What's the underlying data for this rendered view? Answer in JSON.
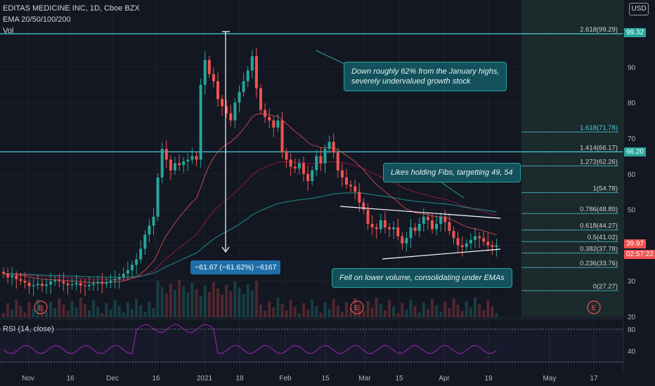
{
  "header": {
    "symbol": "EDITAS MEDICINE INC, 1D, Cboe BZX",
    "ema": "EMA 20/50/100/200",
    "vol": "Vol",
    "currency": "USD",
    "rsi": "RSI (14, close)"
  },
  "price_tags": {
    "top": "99.32",
    "mid": "66.20",
    "last": "39.97",
    "countdown": "02:57:22"
  },
  "annotations": {
    "a1_l1": "Down roughly 62% from the January highs,",
    "a1_l2": "severely undervalued growth stock",
    "a2": "Likes holding Fibs, targetting 49, 54",
    "a3": "Fell on lower volume, consolidating under EMAs",
    "measure": "−61.67 (−61.62%) −6167"
  },
  "colors": {
    "up": "#26a69a",
    "down": "#ef5350",
    "fib": "#4dd0e1",
    "bg": "#131722"
  },
  "chart_data": {
    "type": "candlestick",
    "x_ticks": [
      "Nov",
      "16",
      "Dec",
      "16",
      "2021",
      "18",
      "Feb",
      "15",
      "Mar",
      "15",
      "Apr",
      "19",
      "May",
      "17"
    ],
    "y_ticks": [
      "90",
      "80",
      "70",
      "60",
      "50",
      "40",
      "30",
      "20"
    ],
    "ylim": [
      20,
      108
    ],
    "fib_levels": [
      {
        "ratio": "2.618",
        "price": 99.29,
        "label": "2.618(99.29)"
      },
      {
        "ratio": "1.618",
        "price": 71.78,
        "label": "1.618(71.78)"
      },
      {
        "ratio": "1.414",
        "price": 66.17,
        "label": "1.414(66.17)"
      },
      {
        "ratio": "1.272",
        "price": 62.26,
        "label": "1.272(62.26)"
      },
      {
        "ratio": "1",
        "price": 54.78,
        "label": "1(54.78)"
      },
      {
        "ratio": "0.786",
        "price": 48.89,
        "label": "0.786(48.89)"
      },
      {
        "ratio": "0.618",
        "price": 44.27,
        "label": "0.618(44.27)"
      },
      {
        "ratio": "0.5",
        "price": 41.02,
        "label": "0.5(41.02)"
      },
      {
        "ratio": "0.382",
        "price": 37.78,
        "label": "0.382(37.78)"
      },
      {
        "ratio": "0.236",
        "price": 33.76,
        "label": "0.236(33.76)"
      },
      {
        "ratio": "0",
        "price": 27.27,
        "label": "0(27.27)"
      }
    ],
    "horizontal_lines": [
      99.32,
      66.2
    ],
    "close": [
      32,
      31,
      31.5,
      30.5,
      30,
      29.5,
      28.5,
      28.8,
      29.2,
      28.6,
      29,
      29.8,
      30.2,
      29.9,
      29.3,
      28.8,
      29,
      29.4,
      28.7,
      28.5,
      28.9,
      29.3,
      29.7,
      29.2,
      29.6,
      30.1,
      30.5,
      31,
      32,
      33,
      34.5,
      36,
      39,
      43,
      45.5,
      48,
      59,
      67,
      64,
      61,
      63,
      62.5,
      63.5,
      64,
      65,
      64,
      85,
      92,
      88,
      86,
      81,
      79,
      77,
      75,
      80,
      83,
      86,
      89,
      93,
      84,
      78,
      76,
      75,
      73,
      75,
      66,
      64,
      62,
      61.5,
      63,
      60,
      58,
      61,
      65,
      63,
      67,
      69,
      66,
      61,
      59,
      57,
      56.5,
      55,
      52,
      50,
      46,
      45,
      44.5,
      47,
      45,
      44.5,
      45,
      42.5,
      40.5,
      42,
      45,
      44,
      46,
      48,
      47,
      44.5,
      46,
      48,
      46.5,
      44,
      42,
      40,
      39.5,
      40.5,
      41.5,
      42.5,
      42,
      41,
      40,
      39.5,
      39.97
    ],
    "rsi_ticks": [
      "80",
      "40"
    ]
  }
}
